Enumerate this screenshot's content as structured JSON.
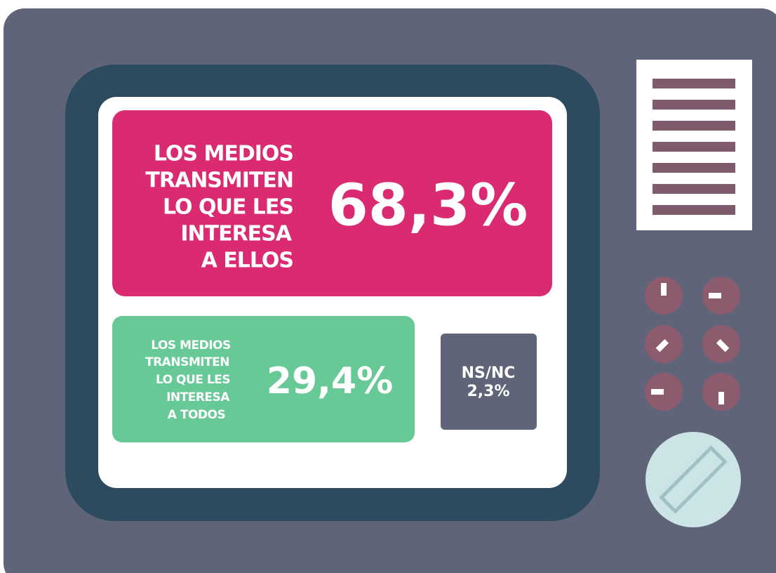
{
  "screen": {
    "panels": [
      {
        "label_lines": [
          "LOS MEDIOS",
          "TRANSMITEN",
          "LO QUE LES",
          "INTERESA",
          "A ELLOS"
        ],
        "value": "68,3%"
      },
      {
        "label_lines": [
          "LOS MEDIOS",
          "TRANSMITEN",
          "LO QUE LES",
          "INTERESA",
          "A TODOS"
        ],
        "value": "29,4%"
      },
      {
        "label_lines": [
          "NS/NC"
        ],
        "value": "2,3%"
      }
    ]
  }
}
